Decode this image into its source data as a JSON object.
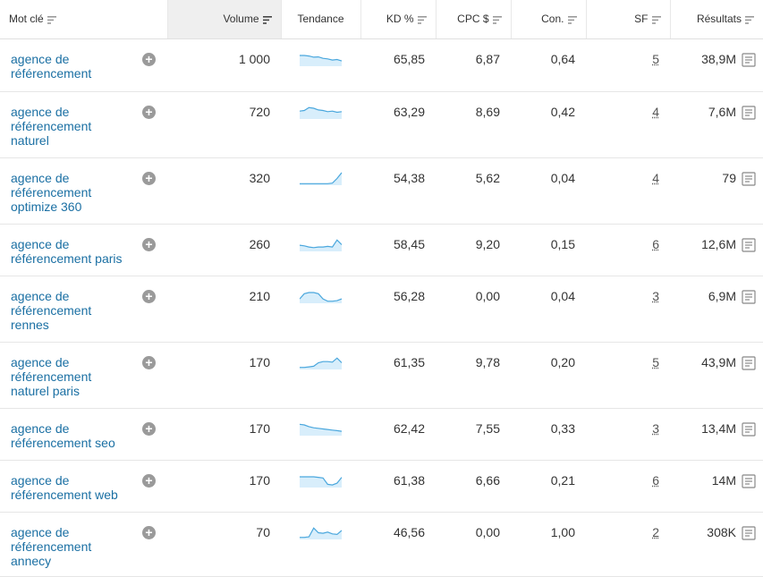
{
  "headers": {
    "keyword": "Mot clé",
    "volume": "Volume",
    "trend": "Tendance",
    "kd": "KD %",
    "cpc": "CPC $",
    "con": "Con.",
    "sf": "SF",
    "results": "Résultats"
  },
  "rows": [
    {
      "kw": [
        "agence de",
        "référencement"
      ],
      "volume": "1 000",
      "trend": [
        0.85,
        0.85,
        0.8,
        0.7,
        0.72,
        0.6,
        0.55,
        0.45,
        0.5,
        0.38
      ],
      "kd": "65,85",
      "cpc": "6,87",
      "con": "0,64",
      "sf": "5",
      "results": "38,9M"
    },
    {
      "kw": [
        "agence de",
        "référencement",
        "naturel"
      ],
      "volume": "720",
      "trend": [
        0.6,
        0.65,
        0.9,
        0.85,
        0.7,
        0.65,
        0.55,
        0.6,
        0.5,
        0.55
      ],
      "kd": "63,29",
      "cpc": "8,69",
      "con": "0,42",
      "sf": "4",
      "results": "7,6M"
    },
    {
      "kw": [
        "agence de",
        "référencement",
        "optimize 360"
      ],
      "volume": "320",
      "trend": [
        0.05,
        0.05,
        0.05,
        0.05,
        0.05,
        0.05,
        0.05,
        0.1,
        0.5,
        1.0
      ],
      "kd": "54,38",
      "cpc": "5,62",
      "con": "0,04",
      "sf": "4",
      "results": "79"
    },
    {
      "kw": [
        "agence de",
        "référencement paris"
      ],
      "volume": "260",
      "trend": [
        0.45,
        0.4,
        0.3,
        0.25,
        0.3,
        0.3,
        0.35,
        0.3,
        0.9,
        0.5
      ],
      "kd": "58,45",
      "cpc": "9,20",
      "con": "0,15",
      "sf": "6",
      "results": "12,6M"
    },
    {
      "kw": [
        "agence de",
        "référencement",
        "rennes"
      ],
      "volume": "210",
      "trend": [
        0.3,
        0.75,
        0.85,
        0.85,
        0.75,
        0.3,
        0.1,
        0.1,
        0.15,
        0.3
      ],
      "kd": "56,28",
      "cpc": "0,00",
      "con": "0,04",
      "sf": "3",
      "results": "6,9M"
    },
    {
      "kw": [
        "agence de",
        "référencement",
        "naturel paris"
      ],
      "volume": "170",
      "trend": [
        0.1,
        0.1,
        0.15,
        0.2,
        0.5,
        0.6,
        0.6,
        0.55,
        0.9,
        0.5
      ],
      "kd": "61,35",
      "cpc": "9,78",
      "con": "0,20",
      "sf": "5",
      "results": "43,9M"
    },
    {
      "kw": [
        "agence de",
        "référencement seo"
      ],
      "volume": "170",
      "trend": [
        0.9,
        0.85,
        0.7,
        0.6,
        0.55,
        0.5,
        0.45,
        0.4,
        0.35,
        0.3
      ],
      "kd": "62,42",
      "cpc": "7,55",
      "con": "0,33",
      "sf": "3",
      "results": "13,4M"
    },
    {
      "kw": [
        "agence de",
        "référencement web"
      ],
      "volume": "170",
      "trend": [
        0.85,
        0.85,
        0.85,
        0.85,
        0.8,
        0.75,
        0.2,
        0.15,
        0.3,
        0.8
      ],
      "kd": "61,38",
      "cpc": "6,66",
      "con": "0,21",
      "sf": "6",
      "results": "14M"
    },
    {
      "kw": [
        "agence de",
        "référencement",
        "annecy"
      ],
      "volume": "70",
      "trend": [
        0.1,
        0.1,
        0.15,
        0.9,
        0.5,
        0.45,
        0.55,
        0.4,
        0.35,
        0.7
      ],
      "kd": "46,56",
      "cpc": "0,00",
      "con": "1,00",
      "sf": "2",
      "results": "308K"
    }
  ],
  "colors": {
    "link": "#1a6fa3",
    "trend_line": "#4aa7dd",
    "trend_fill": "#d8eefb"
  },
  "icons": {
    "sort": "sort-lines-icon",
    "add": "plus-circle-icon",
    "serp": "serp-document-icon"
  }
}
